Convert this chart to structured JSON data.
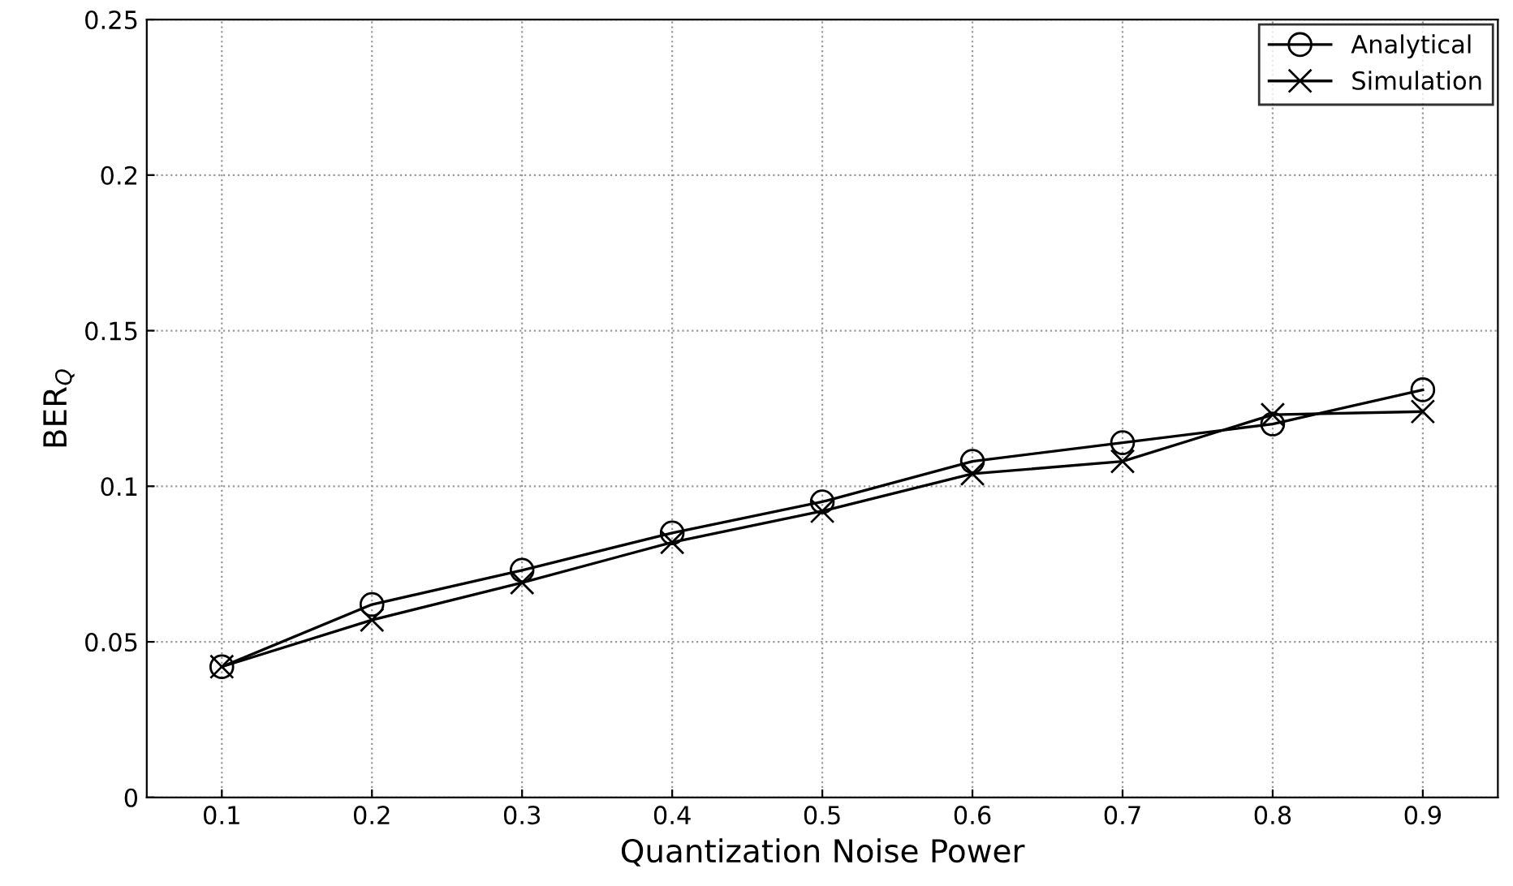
{
  "chart_data": {
    "type": "line",
    "xlabel": "Quantization Noise Power",
    "ylabel": "BER$_{Q}$",
    "x": [
      0.1,
      0.2,
      0.3,
      0.4,
      0.5,
      0.6,
      0.7,
      0.8,
      0.9
    ],
    "series": [
      {
        "name": "Analytical",
        "color": "#000000",
        "marker": "circle",
        "values": [
          0.042,
          0.062,
          0.073,
          0.085,
          0.095,
          0.108,
          0.114,
          0.12,
          0.131
        ]
      },
      {
        "name": "Simulation",
        "color": "#000000",
        "marker": "cross",
        "values": [
          0.042,
          0.057,
          0.069,
          0.082,
          0.092,
          0.104,
          0.108,
          0.123,
          0.124
        ]
      }
    ],
    "xlim": [
      0.05,
      0.95
    ],
    "xticks": [
      0.1,
      0.2,
      0.3,
      0.4,
      0.5,
      0.6,
      0.7,
      0.8,
      0.9
    ],
    "ylim": [
      0,
      0.25
    ],
    "yticks": [
      0,
      0.05,
      0.1,
      0.15,
      0.2,
      0.25
    ],
    "grid": true,
    "legend": "top right",
    "line_style": "solid"
  }
}
